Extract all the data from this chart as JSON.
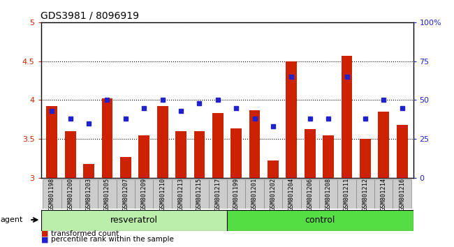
{
  "title": "GDS3981 / 8096919",
  "samples": [
    "GSM801198",
    "GSM801200",
    "GSM801203",
    "GSM801205",
    "GSM801207",
    "GSM801209",
    "GSM801210",
    "GSM801213",
    "GSM801215",
    "GSM801217",
    "GSM801199",
    "GSM801201",
    "GSM801202",
    "GSM801204",
    "GSM801206",
    "GSM801208",
    "GSM801211",
    "GSM801212",
    "GSM801214",
    "GSM801216"
  ],
  "bar_values": [
    3.92,
    3.6,
    3.18,
    4.02,
    3.27,
    3.55,
    3.92,
    3.6,
    3.6,
    3.83,
    3.64,
    3.87,
    3.22,
    4.5,
    3.63,
    3.55,
    4.57,
    3.5,
    3.85,
    3.68
  ],
  "dot_values": [
    43,
    38,
    35,
    50,
    38,
    45,
    50,
    43,
    48,
    50,
    45,
    38,
    33,
    65,
    38,
    38,
    65,
    38,
    50,
    45
  ],
  "resveratrol_count": 10,
  "control_count": 10,
  "ylim": [
    3.0,
    5.0
  ],
  "yticks": [
    3.0,
    3.5,
    4.0,
    4.5,
    5.0
  ],
  "right_ylim": [
    0,
    100
  ],
  "right_yticks": [
    0,
    25,
    50,
    75,
    100
  ],
  "right_yticklabels": [
    "0",
    "25",
    "50",
    "75",
    "100%"
  ],
  "bar_color": "#cc2200",
  "dot_color": "#2222cc",
  "resveratrol_color": "#bbeeaa",
  "control_color": "#55dd44",
  "label_bg_color": "#cccccc",
  "agent_label": "agent",
  "resveratrol_label": "resveratrol",
  "control_label": "control",
  "legend_bar_label": "transformed count",
  "legend_dot_label": "percentile rank within the sample",
  "bar_width": 0.6
}
